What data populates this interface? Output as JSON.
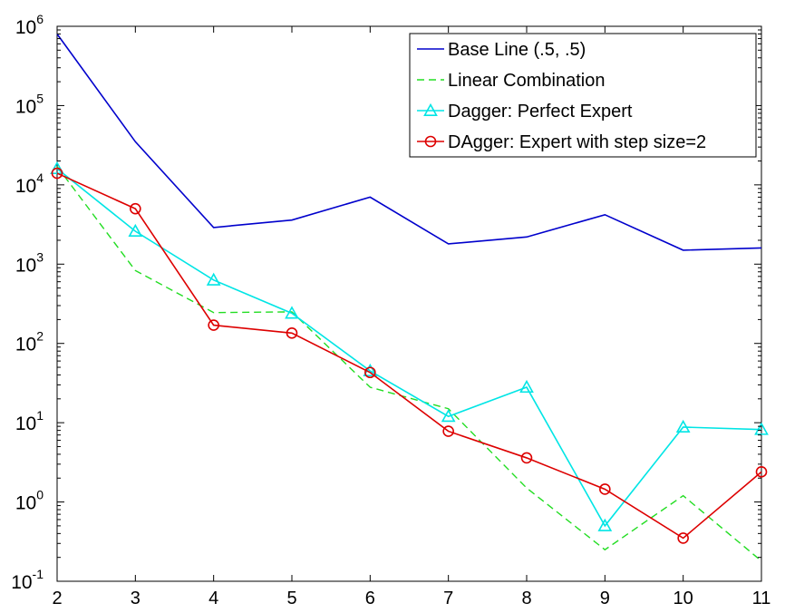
{
  "chart_data": {
    "type": "line",
    "title": "",
    "xlabel": "",
    "ylabel": "",
    "x": [
      2,
      3,
      4,
      5,
      6,
      7,
      8,
      9,
      10,
      11
    ],
    "xlim": [
      2,
      11
    ],
    "ylim": [
      0.1,
      1000000
    ],
    "y_scale": "log",
    "grid": false,
    "legend_position": "top-right",
    "x_ticks": [
      "2",
      "3",
      "4",
      "5",
      "6",
      "7",
      "8",
      "9",
      "10",
      "11"
    ],
    "y_ticks": [
      {
        "base": "10",
        "exp": "-1"
      },
      {
        "base": "10",
        "exp": "0"
      },
      {
        "base": "10",
        "exp": "1"
      },
      {
        "base": "10",
        "exp": "2"
      },
      {
        "base": "10",
        "exp": "3"
      },
      {
        "base": "10",
        "exp": "4"
      },
      {
        "base": "10",
        "exp": "5"
      },
      {
        "base": "10",
        "exp": "6"
      }
    ],
    "series": [
      {
        "name": "Base Line (.5, .5)",
        "color": "#0000cc",
        "style": "solid",
        "marker": "none",
        "values": [
          800000,
          35000,
          2900,
          3600,
          7000,
          1800,
          2200,
          4200,
          1500,
          1600
        ]
      },
      {
        "name": "Linear Combination",
        "color": "#22dd22",
        "style": "dashed",
        "marker": "none",
        "values": [
          17000,
          830,
          245,
          250,
          28,
          15,
          1.5,
          0.25,
          1.2,
          0.18
        ]
      },
      {
        "name": "Dagger: Perfect Expert",
        "color": "#00e5e5",
        "style": "solid",
        "marker": "triangle",
        "values": [
          16000,
          2600,
          630,
          240,
          45,
          12,
          28,
          0.5,
          8.8,
          8.2
        ]
      },
      {
        "name": "DAgger: Expert with step size=2",
        "color": "#dd0000",
        "style": "solid",
        "marker": "circle",
        "values": [
          14000,
          5000,
          170,
          135,
          43,
          7.8,
          3.6,
          1.45,
          0.35,
          2.4
        ]
      }
    ]
  }
}
